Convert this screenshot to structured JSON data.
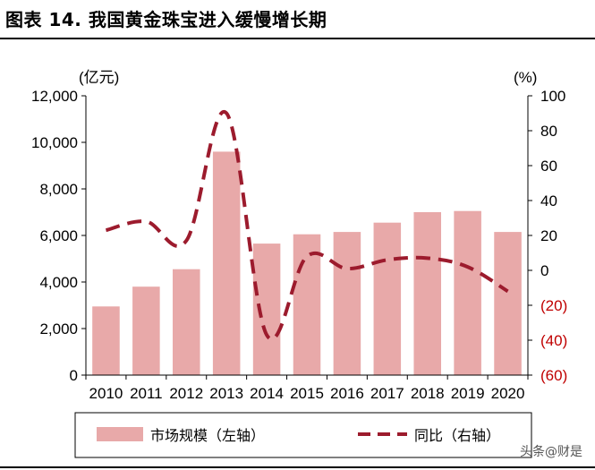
{
  "figure": {
    "title": "图表 14. 我国黄金珠宝进入缓慢增长期",
    "watermark": "头条@财是"
  },
  "colors": {
    "bar": "#e8a9a9",
    "line": "#9c1b2d",
    "right_tick_negative": "#c00000",
    "axis": "#000000"
  },
  "chart_data": {
    "type": "bar",
    "categories": [
      "2010",
      "2011",
      "2012",
      "2013",
      "2014",
      "2015",
      "2016",
      "2017",
      "2018",
      "2019",
      "2020"
    ],
    "series": [
      {
        "name": "市场规模（左轴）",
        "axis": "left",
        "kind": "bar",
        "values": [
          2950,
          3800,
          4550,
          9600,
          5650,
          6050,
          6150,
          6550,
          7000,
          7050,
          6150
        ]
      },
      {
        "name": "同比（右轴）",
        "axis": "right",
        "kind": "line",
        "style": "dashed",
        "values": [
          23,
          28,
          17,
          90,
          -37,
          8,
          1,
          6,
          7,
          2,
          -12
        ]
      }
    ],
    "left_axis": {
      "label": "(亿元)",
      "ylim": [
        0,
        12000
      ],
      "ticks": [
        0,
        2000,
        4000,
        6000,
        8000,
        10000,
        12000
      ],
      "tick_labels": [
        "0",
        "2,000",
        "4,000",
        "6,000",
        "8,000",
        "10,000",
        "12,000"
      ]
    },
    "right_axis": {
      "label": "(%)",
      "ylim": [
        -60,
        100
      ],
      "ticks": [
        100,
        80,
        60,
        40,
        20,
        0,
        -20,
        -40,
        -60
      ],
      "tick_labels": [
        "100",
        "80",
        "60",
        "40",
        "20",
        "0",
        "(20)",
        "(40)",
        "(60)"
      ]
    },
    "legend_position": "bottom"
  }
}
